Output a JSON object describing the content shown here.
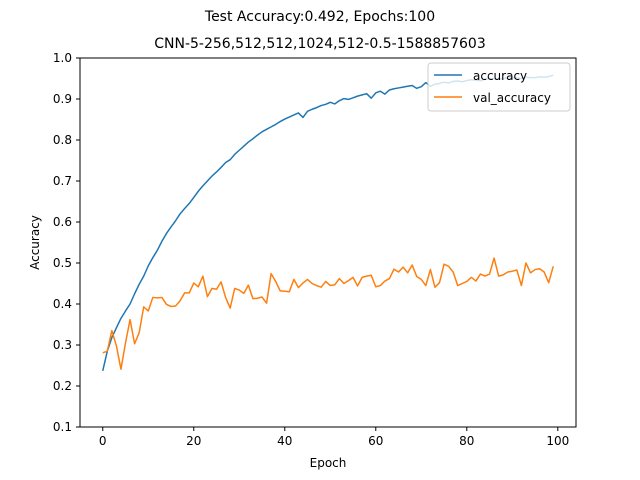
{
  "chart_data": {
    "type": "line",
    "title": "Test Accuracy:0.492, Epochs:100",
    "subtitle": "CNN-5-256,512,512,1024,512-0.5-1588857603",
    "xlabel": "Epoch",
    "ylabel": "Accuracy",
    "xlim": [
      -5,
      104
    ],
    "ylim": [
      0.1,
      1.0
    ],
    "xticks": [
      0,
      20,
      40,
      60,
      80,
      100
    ],
    "yticks": [
      0.1,
      0.2,
      0.3,
      0.4,
      0.5,
      0.6,
      0.7,
      0.8,
      0.9,
      1.0
    ],
    "grid": false,
    "legend_position": "upper right",
    "x": [
      0,
      1,
      2,
      3,
      4,
      5,
      6,
      7,
      8,
      9,
      10,
      11,
      12,
      13,
      14,
      15,
      16,
      17,
      18,
      19,
      20,
      21,
      22,
      23,
      24,
      25,
      26,
      27,
      28,
      29,
      30,
      31,
      32,
      33,
      34,
      35,
      36,
      37,
      38,
      39,
      40,
      41,
      42,
      43,
      44,
      45,
      46,
      47,
      48,
      49,
      50,
      51,
      52,
      53,
      54,
      55,
      56,
      57,
      58,
      59,
      60,
      61,
      62,
      63,
      64,
      65,
      66,
      67,
      68,
      69,
      70,
      71,
      72,
      73,
      74,
      75,
      76,
      77,
      78,
      79,
      80,
      81,
      82,
      83,
      84,
      85,
      86,
      87,
      88,
      89,
      90,
      91,
      92,
      93,
      94,
      95,
      96,
      97,
      98,
      99
    ],
    "series": [
      {
        "name": "accuracy",
        "color": "#1f77b4",
        "values": [
          0.237,
          0.285,
          0.318,
          0.342,
          0.365,
          0.383,
          0.4,
          0.425,
          0.448,
          0.468,
          0.493,
          0.513,
          0.531,
          0.553,
          0.572,
          0.588,
          0.603,
          0.62,
          0.633,
          0.645,
          0.66,
          0.675,
          0.688,
          0.7,
          0.712,
          0.722,
          0.733,
          0.745,
          0.752,
          0.765,
          0.775,
          0.785,
          0.795,
          0.803,
          0.812,
          0.82,
          0.826,
          0.832,
          0.838,
          0.845,
          0.851,
          0.856,
          0.861,
          0.866,
          0.855,
          0.87,
          0.875,
          0.879,
          0.884,
          0.887,
          0.892,
          0.888,
          0.896,
          0.901,
          0.899,
          0.903,
          0.907,
          0.91,
          0.913,
          0.902,
          0.915,
          0.919,
          0.912,
          0.922,
          0.925,
          0.927,
          0.929,
          0.931,
          0.933,
          0.926,
          0.93,
          0.94,
          0.931,
          0.936,
          0.938,
          0.941,
          0.939,
          0.943,
          0.944,
          0.942,
          0.945,
          0.947,
          0.946,
          0.944,
          0.948,
          0.95,
          0.949,
          0.948,
          0.95,
          0.951,
          0.952,
          0.951,
          0.95,
          0.953,
          0.952,
          0.952,
          0.954,
          0.953,
          0.955,
          0.958
        ]
      },
      {
        "name": "val_accuracy",
        "color": "#ff7f0e",
        "values": [
          0.281,
          0.285,
          0.335,
          0.298,
          0.241,
          0.305,
          0.362,
          0.303,
          0.33,
          0.393,
          0.383,
          0.416,
          0.415,
          0.416,
          0.399,
          0.394,
          0.395,
          0.408,
          0.427,
          0.427,
          0.451,
          0.442,
          0.468,
          0.418,
          0.438,
          0.436,
          0.454,
          0.416,
          0.39,
          0.438,
          0.434,
          0.426,
          0.446,
          0.413,
          0.414,
          0.417,
          0.402,
          0.474,
          0.455,
          0.432,
          0.431,
          0.43,
          0.46,
          0.44,
          0.451,
          0.46,
          0.45,
          0.445,
          0.441,
          0.455,
          0.445,
          0.447,
          0.462,
          0.45,
          0.457,
          0.465,
          0.444,
          0.465,
          0.468,
          0.47,
          0.442,
          0.445,
          0.456,
          0.462,
          0.485,
          0.478,
          0.49,
          0.476,
          0.495,
          0.467,
          0.46,
          0.445,
          0.484,
          0.441,
          0.452,
          0.497,
          0.492,
          0.478,
          0.445,
          0.45,
          0.455,
          0.465,
          0.456,
          0.473,
          0.468,
          0.473,
          0.512,
          0.468,
          0.471,
          0.478,
          0.48,
          0.483,
          0.445,
          0.5,
          0.476,
          0.484,
          0.486,
          0.478,
          0.452,
          0.492
        ]
      }
    ]
  }
}
